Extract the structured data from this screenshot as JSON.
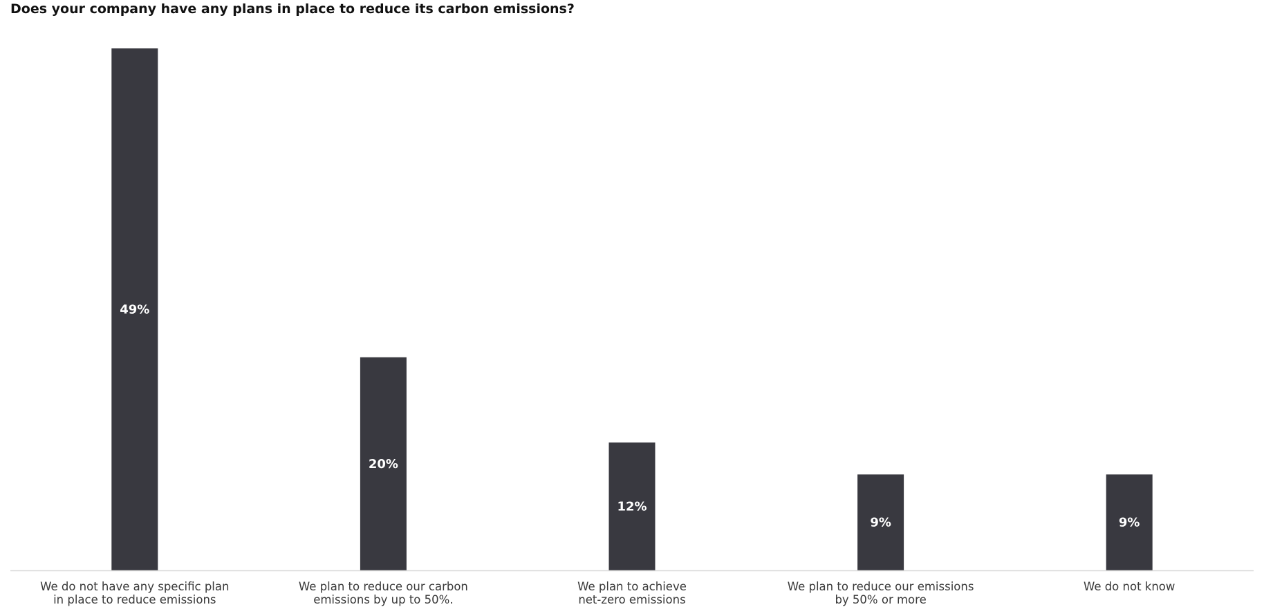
{
  "chart_data": {
    "type": "bar",
    "title": "Does your company have any plans in place to reduce its carbon emissions?",
    "categories": [
      [
        "We do not have any specific plan",
        "in place to reduce emissions"
      ],
      [
        "We plan to reduce our carbon",
        "emissions by up to 50%."
      ],
      [
        "We plan to achieve",
        "net-zero emissions"
      ],
      [
        "We plan to reduce our emissions",
        "by 50% or more"
      ],
      [
        "We do not know"
      ]
    ],
    "values": [
      49,
      20,
      12,
      9,
      9
    ],
    "value_labels": [
      "49%",
      "20%",
      "12%",
      "9%",
      "9%"
    ],
    "xlabel": "",
    "ylabel": "",
    "ylim": [
      0,
      49
    ],
    "grid": false,
    "legend": "none",
    "colors": {
      "bar": "#393940",
      "axis": "#d9d9d9",
      "value_label": "#ffffff",
      "category_label": "#3a3a3a"
    }
  }
}
